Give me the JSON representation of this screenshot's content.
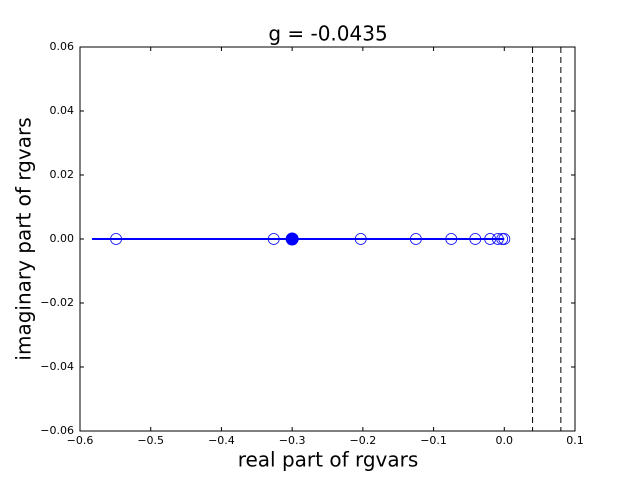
{
  "chart_data": {
    "type": "scatter",
    "title": "g = -0.0435",
    "x_label": "real part of rgvars",
    "y_label": "imaginary part of rgvars",
    "xlim": [
      -0.6,
      0.1
    ],
    "ylim": [
      -0.06,
      0.06
    ],
    "xticks": [
      {
        "value": -0.6,
        "label": "−0.6"
      },
      {
        "value": -0.5,
        "label": "−0.5"
      },
      {
        "value": -0.4,
        "label": "−0.4"
      },
      {
        "value": -0.3,
        "label": "−0.3"
      },
      {
        "value": -0.2,
        "label": "−0.2"
      },
      {
        "value": -0.1,
        "label": "−0.1"
      },
      {
        "value": 0,
        "label": "0.0"
      },
      0.1
    ],
    "yticks": [
      {
        "value": -0.06,
        "label": "−0.06"
      },
      {
        "value": -0.04,
        "label": "−0.04"
      },
      {
        "value": -0.02,
        "label": "−0.02"
      },
      {
        "value": 0,
        "label": "0.00"
      },
      0.02,
      0.04,
      0.06
    ],
    "color": "#0000ff",
    "line": {
      "x": [
        -0.583,
        0
      ],
      "y": [
        0,
        0
      ]
    },
    "open_points": {
      "x": [
        -0.549,
        -0.326,
        -0.203,
        -0.125,
        -0.075,
        -0.041,
        -0.02,
        -0.009,
        -0.003,
        0
      ],
      "y": [
        0,
        0,
        0,
        0,
        0,
        0,
        0,
        0,
        0,
        0
      ]
    },
    "filled_points": {
      "x": [
        -0.3
      ],
      "y": [
        0
      ]
    },
    "vlines": [
      0.04,
      0.08
    ]
  }
}
